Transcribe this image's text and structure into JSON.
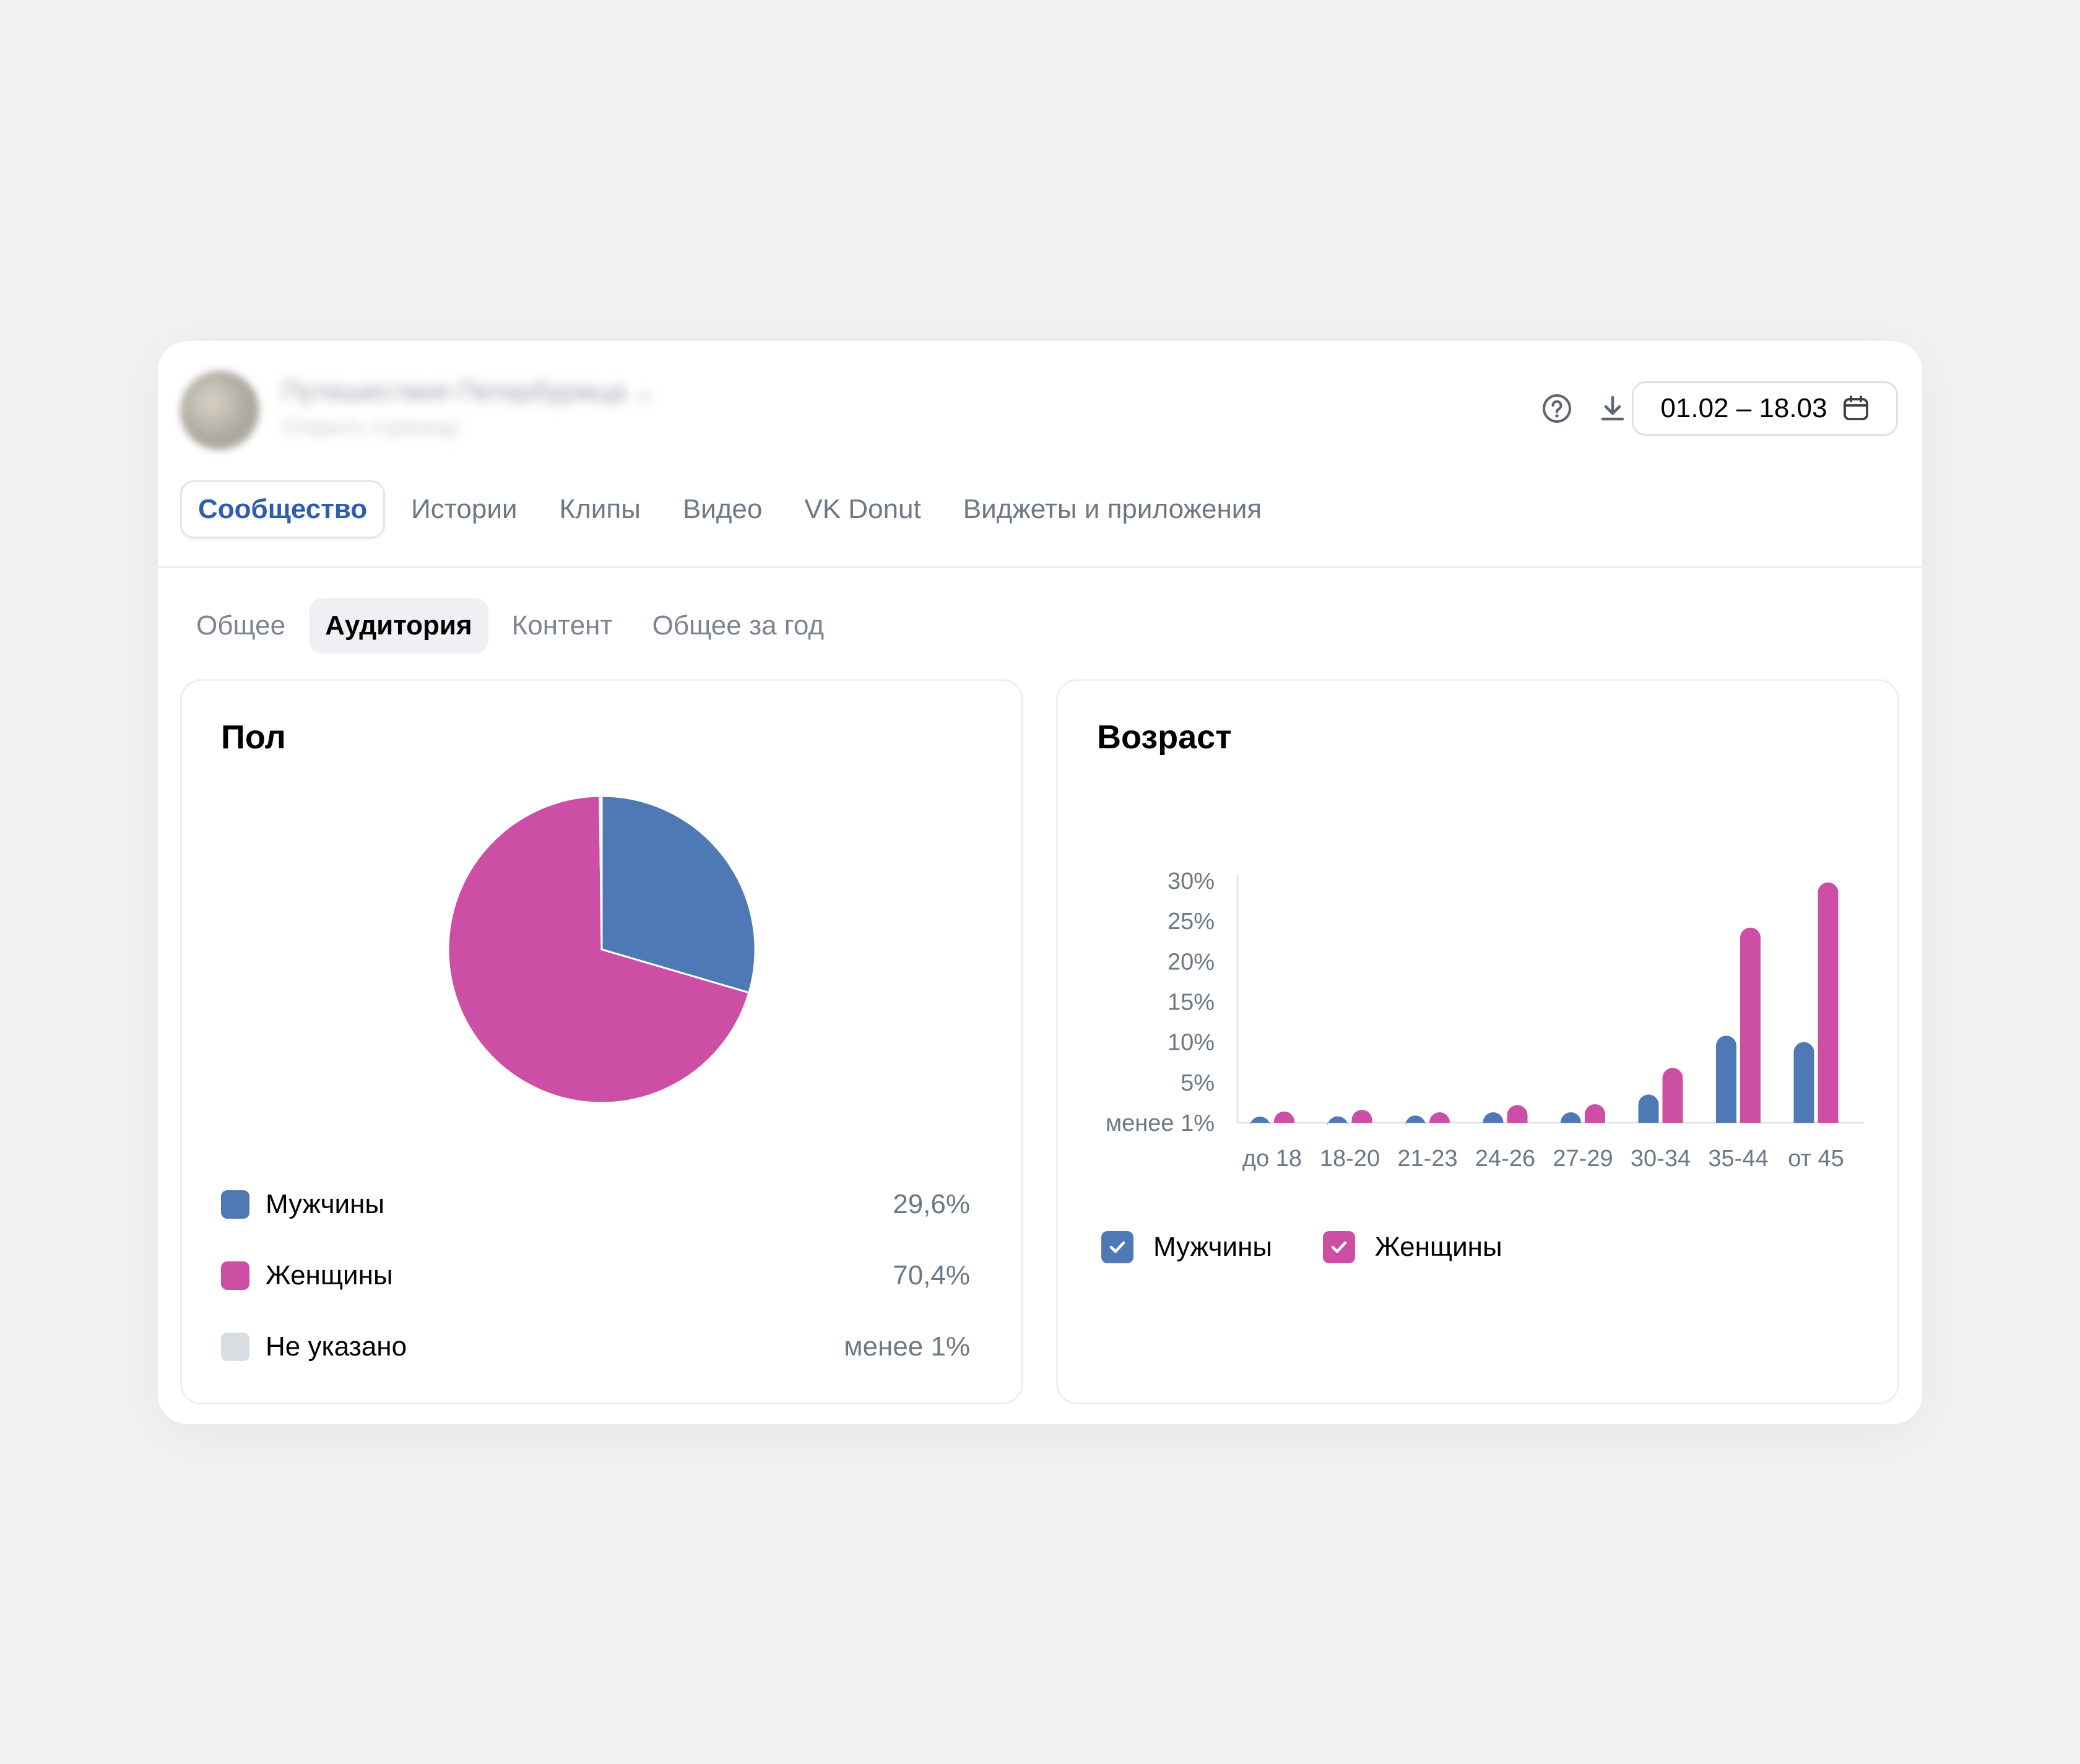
{
  "header": {
    "community_name": "Путешествия Петербуржца",
    "community_sub": "Открыть страницу",
    "date_range": "01.02 – 18.03",
    "icons": [
      "help-icon",
      "download-icon",
      "calendar-icon",
      "chevron-down-icon"
    ]
  },
  "top_tabs": [
    {
      "label": "Сообщество",
      "active": true
    },
    {
      "label": "Истории"
    },
    {
      "label": "Клипы"
    },
    {
      "label": "Видео"
    },
    {
      "label": "VK Donut"
    },
    {
      "label": "Виджеты и приложения"
    }
  ],
  "sub_tabs": [
    {
      "label": "Общее"
    },
    {
      "label": "Аудитория",
      "active": true
    },
    {
      "label": "Контент"
    },
    {
      "label": "Общее за год"
    }
  ],
  "gender_card": {
    "title": "Пол",
    "legend": [
      {
        "label": "Мужчины",
        "value": "29,6%",
        "color": "#4f79b5"
      },
      {
        "label": "Женщины",
        "value": "70,4%",
        "color": "#cd4ea5"
      },
      {
        "label": "Не указано",
        "value": "менее 1%",
        "color": "#d9dce0"
      }
    ]
  },
  "age_card": {
    "title": "Возраст",
    "legend": [
      {
        "label": "Мужчины",
        "color": "#4f79b5",
        "checked": true
      },
      {
        "label": "Женщины",
        "color": "#cd4ea5",
        "checked": true
      }
    ]
  },
  "chart_data": [
    {
      "type": "pie",
      "title": "Пол",
      "labels": [
        "Мужчины",
        "Женщины",
        "Не указано"
      ],
      "values": [
        29.6,
        70.4,
        0.2
      ],
      "colors": [
        "#4f79b5",
        "#cd4ea5",
        "#d9dce0"
      ]
    },
    {
      "type": "bar",
      "title": "Возраст",
      "categories": [
        "до 18",
        "18-20",
        "21-23",
        "24-26",
        "27-29",
        "30-34",
        "35-44",
        "от 45"
      ],
      "series": [
        {
          "name": "Мужчины",
          "color": "#4f79b5",
          "values": [
            0.6,
            0.8,
            0.9,
            1.3,
            1.3,
            3.5,
            10.8,
            10.0
          ]
        },
        {
          "name": "Женщины",
          "color": "#cd4ea5",
          "values": [
            1.4,
            1.6,
            1.3,
            2.2,
            2.3,
            6.8,
            24.2,
            29.8
          ]
        }
      ],
      "yticks": [
        "менее 1%",
        "5%",
        "10%",
        "15%",
        "20%",
        "25%",
        "30%"
      ],
      "ylim": [
        0,
        30
      ]
    }
  ]
}
